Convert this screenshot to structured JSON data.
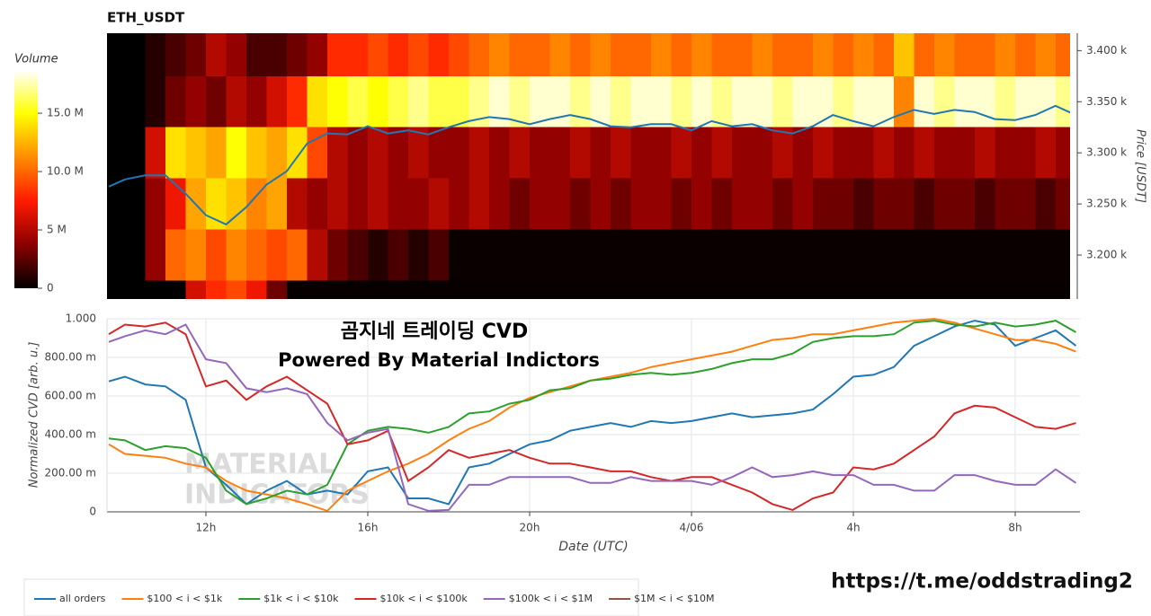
{
  "link": "https://t.me/oddstrading2",
  "chart_data": [
    {
      "type": "heatmap",
      "title": "ETH_USDT",
      "xlim": [
        9.556,
        33.36
      ],
      "x_bins": [
        9.5,
        10,
        10.5,
        11,
        11.5,
        12,
        12.5,
        13,
        13.5,
        14,
        14.5,
        15,
        15.5,
        16,
        16.5,
        17,
        17.5,
        18,
        18.5,
        19,
        19.5,
        20,
        20.5,
        21,
        21.5,
        22,
        22.5,
        23,
        23.5,
        24,
        24.5,
        25,
        25.5,
        26,
        26.5,
        27,
        27.5,
        28,
        28.5,
        29,
        29.5,
        30,
        30.5,
        31,
        31.5,
        32,
        32.5,
        33,
        33.5
      ],
      "y_bins": [
        3125,
        3175,
        3225,
        3275,
        3325,
        3375,
        3425
      ],
      "values": [
        [
          0,
          0,
          0,
          0,
          6,
          8,
          9,
          7,
          3,
          0.2,
          0.2,
          0.2,
          0.2,
          0.2,
          0.2,
          0.2,
          0.2,
          0.2,
          0.2,
          0.2,
          0.2,
          0.2,
          0.2,
          0.2,
          0.2,
          0.2,
          0.2,
          0.2,
          0.2,
          0.2,
          0.2,
          0.2,
          0.2,
          0.2,
          0.2,
          0.2,
          0.2,
          0.2,
          0.2,
          0.2,
          0.2,
          0.2,
          0.2,
          0.2,
          0.2,
          0.2,
          0.2,
          0.2
        ],
        [
          0,
          0,
          4,
          10,
          11,
          9,
          11,
          10,
          9,
          10,
          5,
          3,
          2,
          1,
          2,
          1,
          2,
          0.3,
          0.3,
          0.3,
          0.3,
          0.3,
          0.3,
          0.3,
          0.3,
          0.3,
          0.3,
          0.3,
          0.3,
          0.3,
          0.3,
          0.3,
          0.3,
          0.3,
          0.3,
          0.3,
          0.3,
          0.3,
          0.3,
          0.3,
          0.3,
          0.3,
          0.3,
          0.3,
          0.3,
          0.3,
          0.3,
          0.3
        ],
        [
          0,
          0,
          4,
          7,
          12,
          14,
          13,
          11,
          12,
          5,
          4,
          5,
          4,
          5,
          4,
          4,
          5,
          4,
          5,
          4,
          3,
          4,
          4,
          3,
          4,
          3,
          4,
          4,
          3,
          4,
          3,
          4,
          4,
          3,
          4,
          3,
          3,
          2,
          3,
          3,
          2,
          3,
          3,
          2,
          3,
          3,
          2,
          3
        ],
        [
          0,
          0,
          6,
          14,
          13,
          12,
          15,
          13,
          12,
          14,
          9,
          5,
          4,
          5,
          4,
          5,
          4,
          4,
          5,
          4,
          5,
          4,
          4,
          5,
          4,
          5,
          4,
          4,
          5,
          4,
          5,
          4,
          4,
          5,
          4,
          5,
          4,
          4,
          5,
          4,
          5,
          4,
          4,
          5,
          4,
          4,
          5,
          4
        ],
        [
          0,
          0,
          1,
          3,
          4,
          3,
          5,
          4,
          6,
          8,
          14,
          15,
          16,
          15,
          16,
          17,
          16,
          16,
          17,
          18,
          17,
          18,
          18,
          17,
          18,
          17,
          18,
          18,
          17,
          18,
          17,
          18,
          18,
          17,
          18,
          18,
          17,
          18,
          18,
          11,
          18,
          17,
          18,
          18,
          17,
          18,
          18,
          17
        ],
        [
          0,
          0,
          1,
          2,
          3,
          5,
          4,
          2,
          2,
          3,
          4,
          8,
          8,
          9,
          8,
          9,
          8,
          9,
          10,
          11,
          10,
          10,
          11,
          10,
          11,
          10,
          10,
          11,
          10,
          11,
          10,
          10,
          11,
          10,
          10,
          11,
          10,
          11,
          10,
          13,
          10,
          11,
          10,
          10,
          11,
          10,
          11,
          10
        ]
      ],
      "colorscale": [
        "#000000",
        "#8b0000",
        "#ff1a00",
        "#ff8c00",
        "#ffff00",
        "#ffffff"
      ],
      "colorbar": {
        "title": "Volume",
        "zlim": [
          0,
          18.7
        ],
        "ticks": [
          0,
          {
            "value": 5,
            "label": "5 M"
          },
          {
            "value": 10,
            "label": "10.0 M"
          },
          {
            "value": 15,
            "label": "15.0 M"
          }
        ]
      },
      "ylabel": "Price [USDT]",
      "y_side": "right",
      "ylim": [
        3157,
        3417
      ],
      "yticks": [
        {
          "value": 3200,
          "label": "3.200 k"
        },
        {
          "value": 3250,
          "label": "3.250 k"
        },
        {
          "value": 3300,
          "label": "3.300 k"
        },
        {
          "value": 3350,
          "label": "3.350 k"
        },
        {
          "value": 3400,
          "label": "3.400 k"
        }
      ],
      "price": {
        "color": "#1f77b4",
        "x": [
          9.6,
          10,
          10.5,
          11,
          11.5,
          12,
          12.5,
          13,
          13.5,
          14,
          14.5,
          15,
          15.5,
          16,
          16.5,
          17,
          17.5,
          18,
          18.5,
          19,
          19.5,
          20,
          20.5,
          21,
          21.5,
          22,
          22.5,
          23,
          23.5,
          24,
          24.5,
          25,
          25.5,
          26,
          26.5,
          27,
          27.5,
          28,
          28.5,
          29,
          29.5,
          30,
          30.5,
          31,
          31.5,
          32,
          32.5,
          33,
          33.5
        ],
        "values": [
          3267,
          3274,
          3278,
          3278,
          3260,
          3239,
          3230,
          3247,
          3269,
          3282,
          3309,
          3319,
          3318,
          3326,
          3319,
          3322,
          3318,
          3325,
          3331,
          3335,
          3333,
          3328,
          3333,
          3337,
          3333,
          3326,
          3325,
          3328,
          3328,
          3322,
          3331,
          3326,
          3328,
          3322,
          3319,
          3326,
          3337,
          3331,
          3326,
          3335,
          3342,
          3338,
          3342,
          3340,
          3333,
          3332,
          3337,
          3346,
          3337
        ]
      }
    },
    {
      "type": "line",
      "title": "곰지네 트레이딩 CVD",
      "subtitle": "Powered By Material Indictors",
      "annotations": [
        "MATERIAL",
        "INDICATORS"
      ],
      "xlabel": "Date (UTC)",
      "ylabel": "Normalized CVD [arb. u.]",
      "xlim": [
        9.556,
        33.6
      ],
      "xticks": [
        {
          "value": 12,
          "label": "12h"
        },
        {
          "value": 16,
          "label": "16h"
        },
        {
          "value": 20,
          "label": "20h"
        },
        {
          "value": 24,
          "label": "4/06"
        },
        {
          "value": 28,
          "label": "4h"
        },
        {
          "value": 32,
          "label": "8h"
        }
      ],
      "ylim": [
        0,
        1
      ],
      "yticks": [
        0,
        {
          "value": 0.2,
          "label": "200.00 m"
        },
        {
          "value": 0.4,
          "label": "400.00 m"
        },
        {
          "value": 0.6,
          "label": "600.00 m"
        },
        {
          "value": 0.8,
          "label": "800.00 m"
        },
        {
          "value": 1,
          "label": "1.000"
        }
      ],
      "grid": true,
      "legend": "bottom",
      "x": [
        9.6,
        10,
        10.5,
        11,
        11.5,
        12,
        12.5,
        13,
        13.5,
        14,
        14.5,
        15,
        15.5,
        16,
        16.5,
        17,
        17.5,
        18,
        18.5,
        19,
        19.5,
        20,
        20.5,
        21,
        21.5,
        22,
        22.5,
        23,
        23.5,
        24,
        24.5,
        25,
        25.5,
        26,
        26.5,
        27,
        27.5,
        28,
        28.5,
        29,
        29.5,
        30,
        30.5,
        31,
        31.5,
        32,
        32.5,
        33,
        33.5
      ],
      "series": [
        {
          "name": "all orders",
          "color": "#1f77b4",
          "values": [
            0.676,
            0.7,
            0.66,
            0.65,
            0.58,
            0.23,
            0.14,
            0.04,
            0.11,
            0.16,
            0.09,
            0.11,
            0.09,
            0.21,
            0.23,
            0.07,
            0.07,
            0.04,
            0.23,
            0.25,
            0.3,
            0.35,
            0.37,
            0.42,
            0.44,
            0.46,
            0.44,
            0.47,
            0.46,
            0.47,
            0.49,
            0.51,
            0.49,
            0.5,
            0.51,
            0.53,
            0.61,
            0.7,
            0.71,
            0.75,
            0.86,
            0.91,
            0.96,
            0.99,
            0.97,
            0.86,
            0.9,
            0.94,
            0.86
          ]
        },
        {
          "name": "$100 < i < $1k",
          "color": "#ff7f0e",
          "values": [
            0.35,
            0.3,
            0.29,
            0.28,
            0.25,
            0.23,
            0.16,
            0.11,
            0.09,
            0.07,
            0.04,
            0.005,
            0.11,
            0.16,
            0.21,
            0.25,
            0.3,
            0.37,
            0.43,
            0.47,
            0.54,
            0.59,
            0.62,
            0.65,
            0.68,
            0.7,
            0.72,
            0.75,
            0.77,
            0.79,
            0.81,
            0.83,
            0.86,
            0.89,
            0.9,
            0.92,
            0.92,
            0.94,
            0.96,
            0.98,
            0.99,
            1.0,
            0.98,
            0.95,
            0.92,
            0.89,
            0.89,
            0.87,
            0.83
          ]
        },
        {
          "name": "$1k < i < $10k",
          "color": "#2ca02c",
          "values": [
            0.38,
            0.37,
            0.32,
            0.34,
            0.33,
            0.28,
            0.11,
            0.04,
            0.07,
            0.11,
            0.09,
            0.14,
            0.35,
            0.42,
            0.44,
            0.43,
            0.41,
            0.44,
            0.51,
            0.52,
            0.56,
            0.58,
            0.63,
            0.64,
            0.68,
            0.69,
            0.71,
            0.72,
            0.71,
            0.72,
            0.74,
            0.77,
            0.79,
            0.79,
            0.82,
            0.88,
            0.9,
            0.91,
            0.91,
            0.92,
            0.98,
            0.99,
            0.97,
            0.96,
            0.98,
            0.96,
            0.97,
            0.99,
            0.93
          ]
        },
        {
          "name": "$10k < i < $100k",
          "color": "#d62728",
          "values": [
            0.92,
            0.97,
            0.96,
            0.98,
            0.92,
            0.65,
            0.68,
            0.58,
            0.65,
            0.7,
            0.63,
            0.56,
            0.35,
            0.37,
            0.42,
            0.16,
            0.23,
            0.32,
            0.28,
            0.3,
            0.32,
            0.28,
            0.25,
            0.25,
            0.23,
            0.21,
            0.21,
            0.18,
            0.16,
            0.18,
            0.18,
            0.14,
            0.1,
            0.04,
            0.01,
            0.07,
            0.1,
            0.23,
            0.22,
            0.25,
            0.32,
            0.39,
            0.51,
            0.55,
            0.54,
            0.49,
            0.44,
            0.43,
            0.46
          ]
        },
        {
          "name": "$100k < i < $1M",
          "color": "#9467bd",
          "values": [
            0.88,
            0.91,
            0.94,
            0.92,
            0.97,
            0.79,
            0.77,
            0.64,
            0.62,
            0.64,
            0.61,
            0.46,
            0.37,
            0.41,
            0.43,
            0.04,
            0.005,
            0.01,
            0.14,
            0.14,
            0.18,
            0.18,
            0.18,
            0.18,
            0.15,
            0.15,
            0.18,
            0.16,
            0.16,
            0.16,
            0.14,
            0.18,
            0.23,
            0.18,
            0.19,
            0.21,
            0.19,
            0.19,
            0.14,
            0.14,
            0.11,
            0.11,
            0.19,
            0.19,
            0.16,
            0.14,
            0.14,
            0.22,
            0.15
          ]
        },
        {
          "name": "$1M < i < $10M",
          "color": "#8c564b",
          "values": [
            null,
            null,
            null,
            null,
            null,
            null,
            null,
            null,
            null,
            null,
            null,
            null,
            null,
            null,
            null,
            null,
            null,
            null,
            null,
            null,
            null,
            null,
            null,
            null,
            null,
            null,
            null,
            null,
            null,
            null,
            null,
            null,
            null,
            null,
            null,
            null,
            null,
            null,
            null,
            null,
            null,
            null,
            null,
            null,
            null,
            null,
            null,
            null,
            null
          ]
        }
      ]
    }
  ]
}
